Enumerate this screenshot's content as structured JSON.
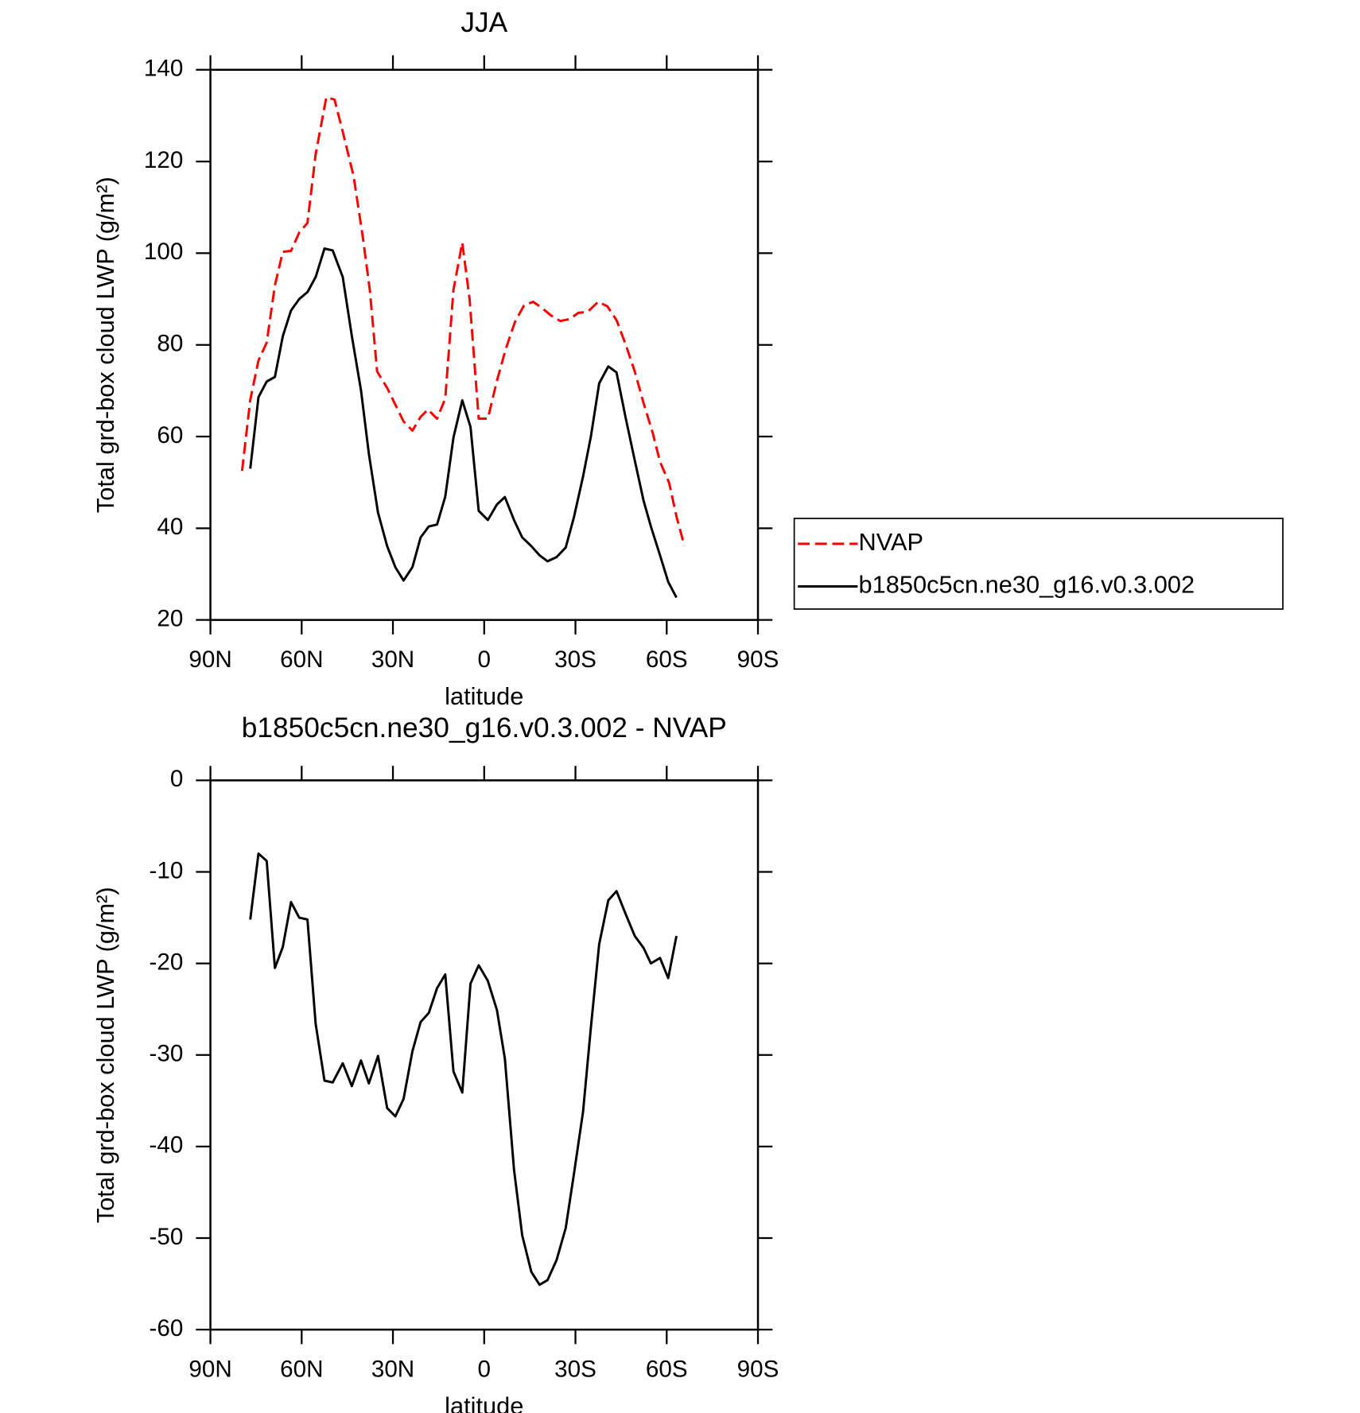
{
  "chart_data": [
    {
      "type": "line",
      "title": "JJA",
      "xlabel": "latitude",
      "ylabel": "Total grd-box cloud LWP (g/m²)",
      "xlim": [
        90,
        -90
      ],
      "xticks": [
        {
          "value": 90,
          "label": "90N"
        },
        {
          "value": 60,
          "label": "60N"
        },
        {
          "value": 30,
          "label": "30N"
        },
        0,
        {
          "value": -30,
          "label": "30S"
        },
        {
          "value": -60,
          "label": "60S"
        },
        {
          "value": -90,
          "label": "90S"
        }
      ],
      "ylim": [
        20,
        140
      ],
      "yticks": [
        20,
        40,
        60,
        80,
        100,
        120,
        140
      ],
      "legend": "right",
      "series": [
        {
          "name": "NVAP",
          "color": "#ff0000",
          "style": "dashed",
          "x": [
            79.6,
            76.9,
            74.2,
            71.5,
            68.8,
            66.2,
            63.5,
            60.8,
            58.1,
            55.4,
            51.9,
            49.2,
            46.5,
            42.9,
            39.9,
            37.6,
            35.2,
            31.9,
            26.5,
            23.6,
            20.9,
            18.5,
            15.5,
            12.8,
            10.1,
            7.2,
            4.8,
            1.8,
            -1.2,
            -4.2,
            -7.1,
            -10.1,
            -13.1,
            -16.1,
            -19.1,
            -22.0,
            -25.0,
            -28.0,
            -31.0,
            -34.0,
            -37.5,
            -40.5,
            -43.5,
            -46.5,
            -49.5,
            -52.4,
            -55.4,
            -57.8,
            -60.8,
            -63.2,
            -65.8
          ],
          "values": [
            52.5,
            68,
            76.6,
            80.5,
            93,
            100.3,
            100.5,
            104.5,
            106.6,
            121.6,
            134,
            133.5,
            126.5,
            116.7,
            103.5,
            92,
            74.2,
            70.6,
            63.3,
            61.3,
            64.3,
            65.9,
            63.9,
            68.3,
            92,
            102.3,
            90,
            63.9,
            63.9,
            72.2,
            79.1,
            85,
            88.6,
            89.4,
            88,
            86.4,
            85.2,
            85.6,
            87,
            87.2,
            89.4,
            88.4,
            85.4,
            80.1,
            74.2,
            67.3,
            60.8,
            54.5,
            49.9,
            42.6,
            36.2
          ]
        },
        {
          "name": "b1850c5cn.ne30_g16.v0.3.002",
          "color": "#000000",
          "style": "solid",
          "x": [
            76.9,
            74.2,
            71.5,
            68.8,
            66.2,
            63.5,
            60.8,
            58.1,
            55.4,
            52.5,
            49.8,
            46.5,
            43.5,
            40.5,
            37.9,
            34.9,
            31.9,
            29.2,
            26.5,
            23.6,
            20.9,
            18.2,
            15.5,
            12.8,
            10.1,
            7.2,
            4.5,
            1.8,
            -1.2,
            -4.2,
            -6.8,
            -9.8,
            -12.5,
            -15.5,
            -18.2,
            -20.8,
            -23.8,
            -26.8,
            -29.5,
            -32.5,
            -35.1,
            -37.8,
            -40.8,
            -43.5,
            -46.5,
            -49.5,
            -52.4,
            -54.8,
            -57.8,
            -60.5,
            -63.2
          ],
          "values": [
            53,
            68.6,
            72,
            73,
            81.9,
            87.5,
            90,
            91.5,
            94.8,
            101,
            100.6,
            94.8,
            81.9,
            70.1,
            56.2,
            43.4,
            36.1,
            31.5,
            28.6,
            31.5,
            38,
            40.4,
            40.8,
            46.9,
            59.8,
            67.9,
            62.1,
            43.8,
            41.8,
            45.2,
            46.8,
            41.8,
            38,
            36.1,
            34.1,
            32.8,
            33.7,
            35.8,
            42.4,
            51.3,
            60.1,
            71.6,
            75.3,
            74,
            64.1,
            54.8,
            46,
            40.4,
            34.1,
            28.3,
            24.9
          ]
        }
      ]
    },
    {
      "type": "line",
      "title": "b1850c5cn.ne30_g16.v0.3.002 - NVAP",
      "xlabel": "latitude",
      "ylabel": "Total grd-box cloud LWP (g/m²)",
      "xlim": [
        90,
        -90
      ],
      "xticks": [
        {
          "value": 90,
          "label": "90N"
        },
        {
          "value": 60,
          "label": "60N"
        },
        {
          "value": 30,
          "label": "30N"
        },
        0,
        {
          "value": -30,
          "label": "30S"
        },
        {
          "value": -60,
          "label": "60S"
        },
        {
          "value": -90,
          "label": "90S"
        }
      ],
      "ylim": [
        -60,
        0
      ],
      "yticks": [
        -60,
        -50,
        -40,
        -30,
        -20,
        -10,
        0
      ],
      "series": [
        {
          "color": "#000000",
          "style": "solid",
          "x": [
            76.9,
            74.2,
            71.5,
            68.8,
            66.2,
            63.5,
            60.8,
            58.1,
            55.4,
            52.5,
            49.8,
            46.5,
            43.5,
            40.5,
            37.9,
            34.9,
            31.9,
            29.2,
            26.5,
            23.6,
            20.9,
            18.2,
            15.5,
            12.8,
            10.1,
            7.2,
            4.5,
            1.8,
            -1.2,
            -4.2,
            -6.8,
            -9.8,
            -12.5,
            -15.5,
            -18.2,
            -20.8,
            -23.8,
            -26.8,
            -29.5,
            -32.5,
            -35.1,
            -37.8,
            -40.8,
            -43.5,
            -46.5,
            -49.5,
            -52.4,
            -54.8,
            -57.8,
            -60.5,
            -63.2
          ],
          "values": [
            -15.2,
            -8.0,
            -8.8,
            -20.5,
            -18.2,
            -13.3,
            -15.0,
            -15.2,
            -26.6,
            -32.8,
            -33.0,
            -30.9,
            -33.4,
            -30.6,
            -33.1,
            -30.1,
            -35.8,
            -36.7,
            -34.8,
            -29.6,
            -26.4,
            -25.4,
            -22.7,
            -21.2,
            -31.8,
            -34.1,
            -22.2,
            -20.2,
            -21.9,
            -25.1,
            -30.4,
            -42.5,
            -49.7,
            -53.7,
            -55.1,
            -54.6,
            -52.4,
            -48.9,
            -43.0,
            -36.2,
            -26.9,
            -17.9,
            -13.1,
            -12.1,
            -14.6,
            -17.0,
            -18.3,
            -20.0,
            -19.4,
            -21.6,
            -17.0
          ]
        }
      ]
    }
  ]
}
